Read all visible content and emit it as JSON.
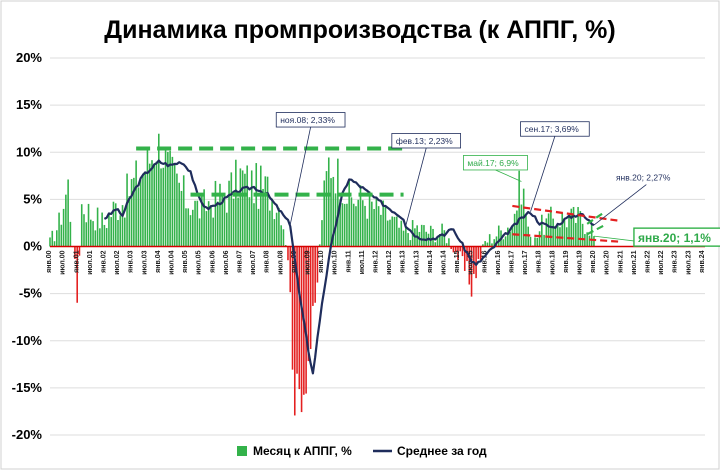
{
  "chart_data": {
    "type": "bar+line",
    "title": "Динамика промпроизводства (к АППГ, %)",
    "xlabel": "",
    "ylabel": "",
    "ylim": [
      -20,
      20
    ],
    "yticks": [
      20,
      15,
      10,
      5,
      0,
      -5,
      -10,
      -15,
      -20
    ],
    "ytick_labels": [
      "20%",
      "15%",
      "10%",
      "5%",
      "0%",
      "-5%",
      "-10%",
      "-15%",
      "-20%"
    ],
    "x_ticks": [
      "янв.00",
      "янв.01",
      "янв.02",
      "янв.03",
      "янв.04",
      "янв.05",
      "янв.06",
      "янв.07",
      "янв.08",
      "янв.09",
      "янв.10",
      "янв.11",
      "янв.12",
      "янв.13",
      "янв.14",
      "янв.15",
      "янв.16",
      "янв.17",
      "янв.18",
      "янв.19",
      "янв.20",
      "янв.21",
      "янв.22",
      "янв.23",
      "янв.24"
    ],
    "x_start": "янв.00",
    "grid": true,
    "legend_position": "bottom",
    "colors": {
      "bar": "#33b24a",
      "bar_negative": "#e42020",
      "line": "#1f2d5c",
      "dashed_green": "#33b24a",
      "dashed_red": "#e42020",
      "axis_line": "#d60000",
      "grid": "#dddddd"
    },
    "series": [
      {
        "name": "Месяц к АППГ, %",
        "kind": "bar",
        "anchors": [
          [
            "янв.00",
            0.4
          ],
          [
            "май.00",
            2.5
          ],
          [
            "сен.00",
            6.5
          ],
          [
            "янв.01",
            -5.5
          ],
          [
            "мар.01",
            4.5
          ],
          [
            "июл.01",
            3.5
          ],
          [
            "янв.02",
            2.5
          ],
          [
            "май.02",
            4.0
          ],
          [
            "окт.02",
            5.0
          ],
          [
            "янв.03",
            6.5
          ],
          [
            "июн.03",
            8.0
          ],
          [
            "янв.04",
            11.0
          ],
          [
            "май.04",
            8.5
          ],
          [
            "янв.05",
            5.0
          ],
          [
            "июл.05",
            4.0
          ],
          [
            "янв.06",
            5.0
          ],
          [
            "июл.06",
            5.5
          ],
          [
            "янв.07",
            7.5
          ],
          [
            "июл.07",
            6.5
          ],
          [
            "янв.08",
            6.0
          ],
          [
            "июл.08",
            4.0
          ],
          [
            "окт.08",
            -1.0
          ],
          [
            "янв.09",
            -16.0
          ],
          [
            "май.09",
            -15.0
          ],
          [
            "окт.09",
            -7.0
          ],
          [
            "янв.10",
            3.5
          ],
          [
            "апр.10",
            9.0
          ],
          [
            "окт.10",
            7.0
          ],
          [
            "янв.11",
            5.0
          ],
          [
            "июл.11",
            5.0
          ],
          [
            "янв.12",
            4.0
          ],
          [
            "июл.12",
            3.0
          ],
          [
            "янв.13",
            1.5
          ],
          [
            "июл.13",
            2.0
          ],
          [
            "янв.14",
            1.5
          ],
          [
            "июл.14",
            1.5
          ],
          [
            "янв.15",
            -1.0
          ],
          [
            "июл.15",
            -4.0
          ],
          [
            "янв.16",
            0.5
          ],
          [
            "июл.16",
            1.5
          ],
          [
            "янв.17",
            2.5
          ],
          [
            "май.17",
            6.9
          ],
          [
            "сен.17",
            0.5
          ],
          [
            "янв.18",
            2.0
          ],
          [
            "июл.18",
            3.0
          ],
          [
            "янв.19",
            3.0
          ],
          [
            "июл.19",
            3.0
          ],
          [
            "дек.19",
            2.0
          ],
          [
            "янв.20",
            1.1
          ]
        ]
      },
      {
        "name": "Среднее за год",
        "kind": "line",
        "anchors": [
          [
            "янв.02",
            3.0
          ],
          [
            "апр.02",
            3.5
          ],
          [
            "июн.02",
            4.0
          ],
          [
            "сен.02",
            3.3
          ],
          [
            "дек.02",
            5.0
          ],
          [
            "июн.03",
            7.5
          ],
          [
            "янв.04",
            9.0
          ],
          [
            "июн.04",
            8.6
          ],
          [
            "ноя.04",
            9.0
          ],
          [
            "мар.05",
            8.0
          ],
          [
            "июн.05",
            5.5
          ],
          [
            "окт.05",
            4.0
          ],
          [
            "мар.06",
            4.5
          ],
          [
            "сен.06",
            5.5
          ],
          [
            "янв.07",
            6.0
          ],
          [
            "июл.07",
            6.3
          ],
          [
            "янв.08",
            5.5
          ],
          [
            "ноя.08",
            2.33
          ],
          [
            "мар.09",
            -5.0
          ],
          [
            "июл.09",
            -11.0
          ],
          [
            "сен.09",
            -13.5
          ],
          [
            "янв.10",
            -6.0
          ],
          [
            "май.10",
            0.0
          ],
          [
            "окт.10",
            5.5
          ],
          [
            "янв.11",
            7.2
          ],
          [
            "июл.11",
            6.2
          ],
          [
            "янв.12",
            5.0
          ],
          [
            "июл.12",
            4.0
          ],
          [
            "янв.13",
            3.0
          ],
          [
            "фев.13",
            2.23
          ],
          [
            "июл.13",
            1.0
          ],
          [
            "янв.14",
            0.8
          ],
          [
            "июл.14",
            1.2
          ],
          [
            "окт.14",
            2.0
          ],
          [
            "янв.15",
            1.0
          ],
          [
            "июл.15",
            -1.5
          ],
          [
            "сен.15",
            -2.0
          ],
          [
            "янв.16",
            -1.0
          ],
          [
            "июл.16",
            0.5
          ],
          [
            "янв.17",
            2.0
          ],
          [
            "май.17",
            3.0
          ],
          [
            "сен.17",
            3.69
          ],
          [
            "янв.18",
            2.5
          ],
          [
            "июл.18",
            2.0
          ],
          [
            "янв.19",
            3.0
          ],
          [
            "июл.19",
            3.5
          ],
          [
            "янв.20",
            2.27
          ]
        ]
      }
    ],
    "reference_lines": [
      {
        "kind": "dashed_green",
        "from": [
          "мар.03",
          10.4
        ],
        "to": [
          "янв.13",
          10.4
        ]
      },
      {
        "kind": "dashed_green",
        "from": [
          "мар.05",
          5.5
        ],
        "to": [
          "янв.13",
          5.5
        ]
      },
      {
        "kind": "dashed_red",
        "from": [
          "янв.17",
          4.3
        ],
        "to": [
          "янв.21",
          2.7
        ]
      },
      {
        "kind": "dashed_red",
        "from": [
          "янв.17",
          1.3
        ],
        "to": [
          "янв.21",
          0.5
        ]
      },
      {
        "kind": "dashed_green",
        "from": [
          "окт.19",
          2.4
        ],
        "to": [
          "июн.20",
          3.7
        ]
      },
      {
        "kind": "dashed_green",
        "from": [
          "окт.19",
          1.3
        ],
        "to": [
          "июн.20",
          2.3
        ]
      }
    ],
    "annotations": [
      {
        "text": "ноя.08; 2,33%",
        "point": [
          "ноя.08",
          2.33
        ],
        "style": "navy",
        "box": true
      },
      {
        "text": "фев.13; 2,23%",
        "point": [
          "фев.13",
          2.23
        ],
        "style": "navy",
        "box": true
      },
      {
        "text": "май.17; 6,9%",
        "point": [
          "май.17",
          6.9
        ],
        "style": "green",
        "box": true
      },
      {
        "text": "сен.17; 3,69%",
        "point": [
          "сен.17",
          3.69
        ],
        "style": "navy",
        "box": true
      },
      {
        "text": "янв.20; 2,27%",
        "point": [
          "янв.20",
          2.27
        ],
        "style": "navy",
        "box": false
      },
      {
        "text": "янв.20; 1,1%",
        "point": [
          "янв.20",
          1.1
        ],
        "style": "green-big",
        "box": true
      }
    ]
  }
}
